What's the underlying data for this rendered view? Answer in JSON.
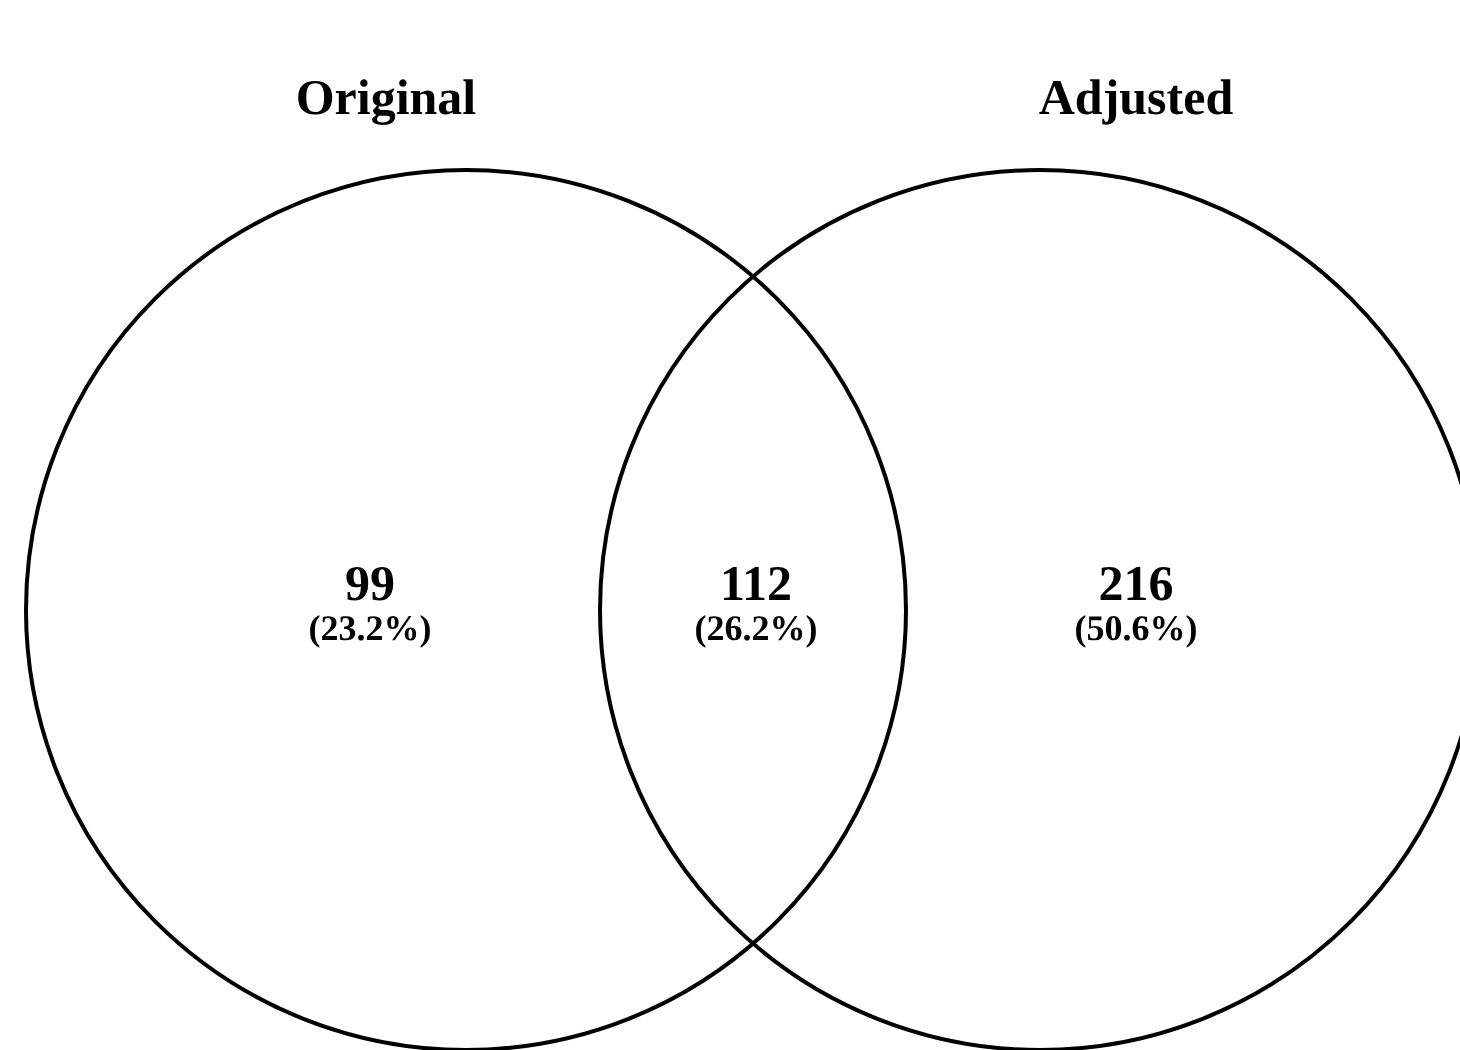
{
  "chart_data": {
    "type": "other",
    "categories": [
      "Original",
      null,
      "Adjusted"
    ],
    "values": [
      99,
      112,
      216
    ],
    "data_labels": true,
    "annotations": [
      "(23.2%)",
      "(26.2%)",
      "(50.6%)"
    ]
  }
}
